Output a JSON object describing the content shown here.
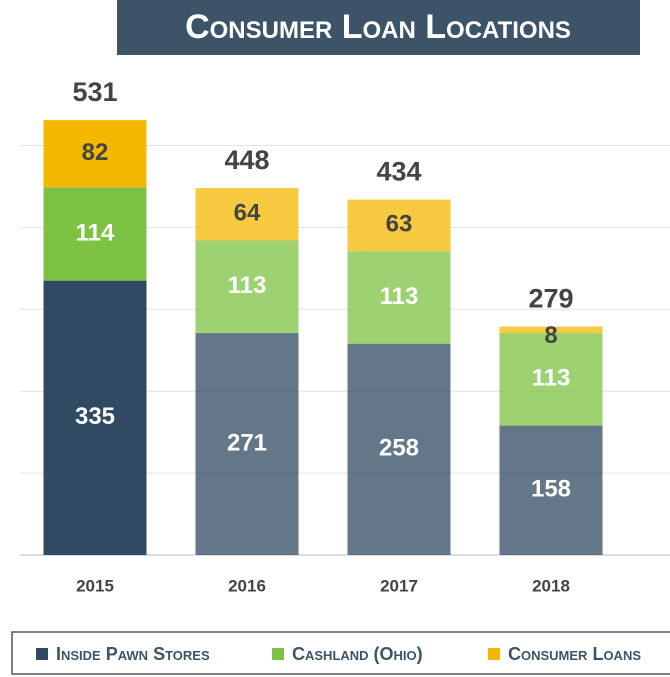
{
  "chart_data": {
    "type": "stacked_bar",
    "title": "Consumer Loan Locations",
    "categories": [
      "2015",
      "2016",
      "2017",
      "2018"
    ],
    "series": [
      {
        "name": "Inside Pawn Stores",
        "color": "#2f4a62",
        "values": [
          335,
          271,
          258,
          158
        ]
      },
      {
        "name": "Cashland (Ohio)",
        "color": "#7dc242",
        "values": [
          114,
          113,
          113,
          113
        ]
      },
      {
        "name": "Consumer Loans",
        "color": "#f5b800",
        "values": [
          82,
          64,
          63,
          8
        ]
      }
    ],
    "totals": [
      531,
      448,
      434,
      279
    ],
    "ylim": [
      0,
      600
    ],
    "yticks": [
      0,
      100,
      200,
      300,
      400,
      500
    ],
    "grid": true
  }
}
